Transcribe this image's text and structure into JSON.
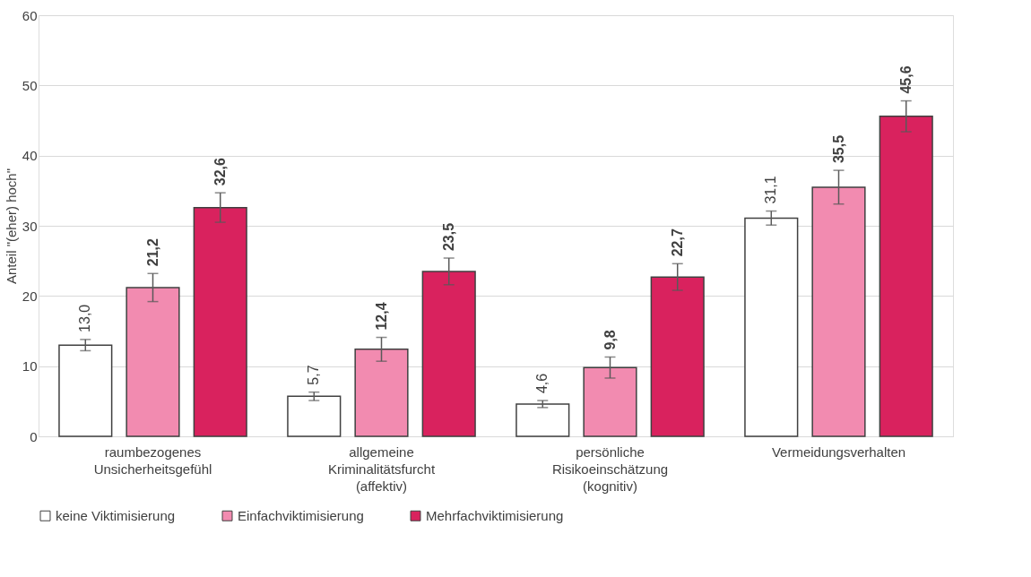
{
  "chart_data": {
    "type": "bar",
    "ylabel": "Anteil \"(eher) hoch\"",
    "categories": [
      "raumbezogenes\nUnsicherheitsgefühl",
      "allgemeine\nKriminalitätsfurcht\n(affektiv)",
      "persönliche\nRisikoeinschätzung\n(kognitiv)",
      "Vermeidungsverhalten"
    ],
    "series": [
      {
        "name": "keine Viktimisierung",
        "color": "#ffffff",
        "values": [
          13.0,
          5.7,
          4.6,
          31.1
        ],
        "errors": [
          0.8,
          0.6,
          0.5,
          1.0
        ],
        "value_labels": [
          "13,0",
          "5,7",
          "4,6",
          "31,1"
        ]
      },
      {
        "name": "Einfachviktimisierung",
        "color": "#f28bb0",
        "values": [
          21.2,
          12.4,
          9.8,
          35.5
        ],
        "errors": [
          2.0,
          1.7,
          1.5,
          2.4
        ],
        "value_labels": [
          "21,2",
          "12,4",
          "9,8",
          "35,5"
        ]
      },
      {
        "name": "Mehrfachviktimisierung",
        "color": "#d9225e",
        "values": [
          32.6,
          23.5,
          22.7,
          45.6
        ],
        "errors": [
          2.1,
          1.9,
          1.9,
          2.2
        ],
        "value_labels": [
          "32,6",
          "23,5",
          "22,7",
          "45,6"
        ]
      }
    ],
    "ylim": [
      0,
      60
    ],
    "yticks": [
      0,
      10,
      20,
      30,
      40,
      50,
      60
    ],
    "grid": "y",
    "legend": "bottom"
  }
}
